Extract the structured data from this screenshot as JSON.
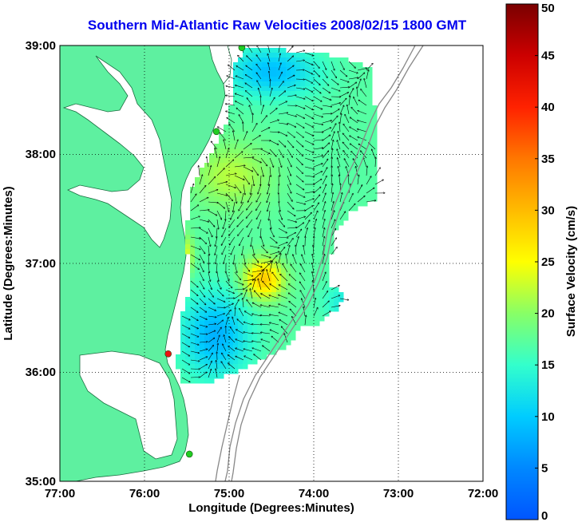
{
  "title": "Southern Mid-Atlantic Raw Velocities 2008/02/15 1800 GMT",
  "x_axis": {
    "label": "Longitude (Degrees:Minutes)",
    "ticks": [
      "77:00",
      "76:00",
      "75:00",
      "74:00",
      "73:00",
      "72:00"
    ]
  },
  "y_axis": {
    "label": "Latitude (Degrees:Minutes)",
    "ticks": [
      "39:00",
      "38:00",
      "37:00",
      "36:00",
      "35:00"
    ]
  },
  "colorbar": {
    "label": "Surface Velocity (cm/s)",
    "min": 0,
    "max": 50,
    "ticks": [
      "0",
      "5",
      "10",
      "15",
      "20",
      "25",
      "30",
      "35",
      "40",
      "45",
      "50"
    ]
  },
  "colors": {
    "title": "#0000ee",
    "land": "#5ef0a0",
    "grid": "#000000",
    "bathymetry": "#888888",
    "station_green": "#22cc22",
    "station_red": "#ee1111"
  },
  "map": {
    "lon_range": [
      -77,
      -72
    ],
    "lat_range": [
      35,
      39
    ]
  },
  "stations": [
    {
      "name": "station-north",
      "lon": -74.85,
      "lat": 38.98,
      "color": "green"
    },
    {
      "name": "station-mid",
      "lon": -75.15,
      "lat": 38.21,
      "color": "green"
    },
    {
      "name": "station-south-red",
      "lon": -75.72,
      "lat": 36.17,
      "color": "red"
    },
    {
      "name": "station-south-green",
      "lon": -75.47,
      "lat": 35.25,
      "color": "green"
    }
  ]
}
